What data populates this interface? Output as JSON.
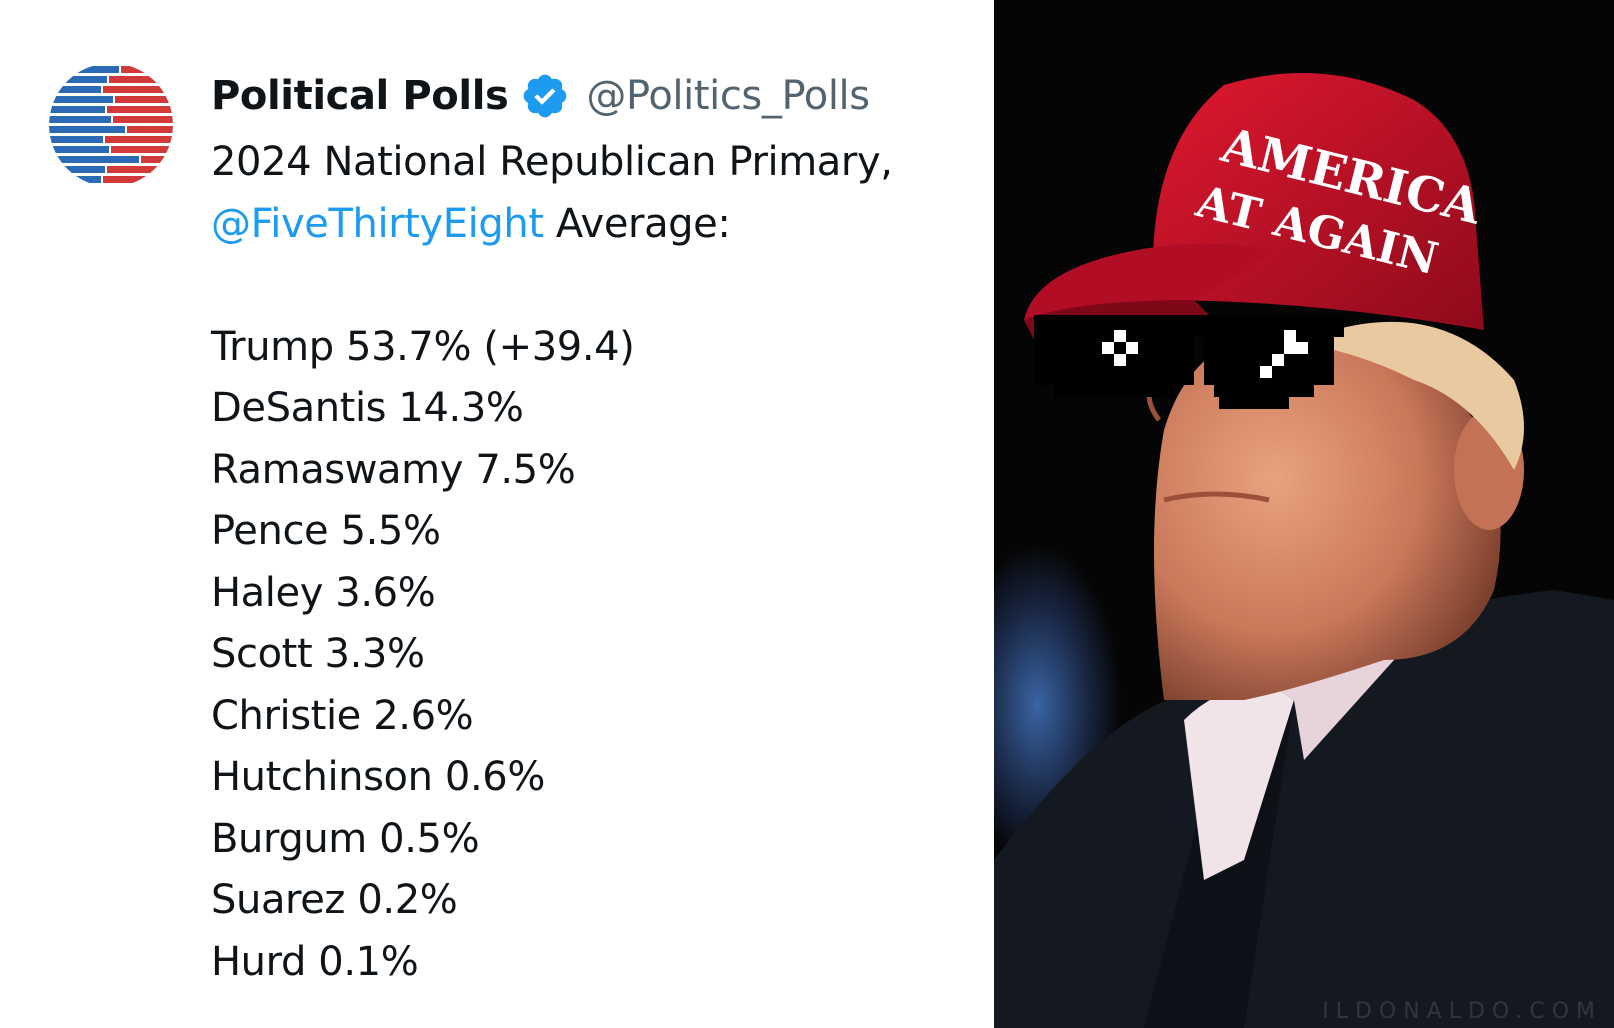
{
  "tweet": {
    "display_name": "Political Polls",
    "verified_icon": "verified-badge-icon",
    "handle": "@Politics_Polls",
    "title_line": "2024 National Republican Primary,",
    "mention": "@FiveThirtyEight",
    "title_suffix": " Average:",
    "results": [
      {
        "line": "Trump 53.7% (+39.4)"
      },
      {
        "line": "DeSantis 14.3%"
      },
      {
        "line": "Ramaswamy 7.5%"
      },
      {
        "line": "Pence 5.5%"
      },
      {
        "line": "Haley 3.6%"
      },
      {
        "line": "Scott 3.3%"
      },
      {
        "line": "Christie 2.6%"
      },
      {
        "line": "Hutchinson 0.6%"
      },
      {
        "line": "Burgum 0.5%"
      },
      {
        "line": "Suarez 0.2%"
      },
      {
        "line": "Hurd 0.1%"
      }
    ]
  },
  "photo": {
    "cap_text_line1": "AMERICA",
    "cap_text_line2": "AT AGAIN",
    "watermark": "ILDONALDO.COM"
  },
  "colors": {
    "text": "#0f1419",
    "handle": "#536471",
    "link": "#1d9bf0",
    "verified": "#1d9bf0",
    "avatar_blue": "#2b6ab4",
    "avatar_red": "#d23a3a",
    "cap_red": "#c8102e"
  }
}
